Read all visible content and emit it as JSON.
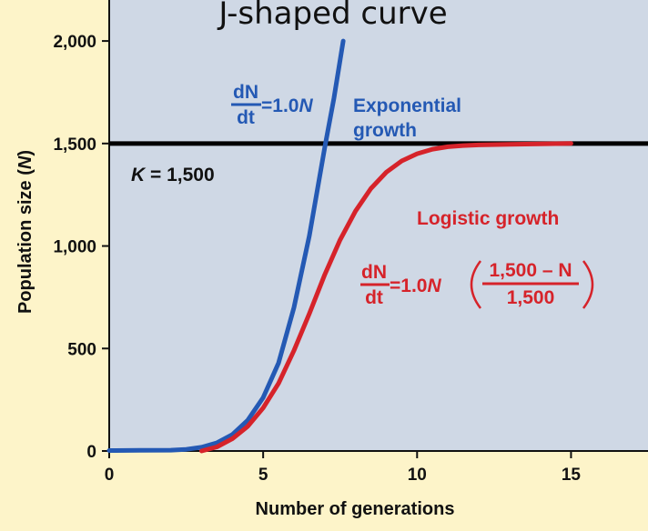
{
  "chart_data": {
    "type": "line",
    "title": "J-shaped curve",
    "xlabel": "Number of generations",
    "ylabel": "Population size",
    "ylabel_var": "N",
    "xlim": [
      0,
      17.5
    ],
    "ylim": [
      0,
      2200
    ],
    "x_ticks": [
      0,
      5,
      10,
      15
    ],
    "y_ticks": [
      0,
      500,
      1000,
      1500,
      2000
    ],
    "x_tick_labels": [
      "0",
      "5",
      "10",
      "15"
    ],
    "y_tick_labels": [
      "0",
      "500",
      "1,000",
      "1,500",
      "2,000"
    ],
    "grid": false,
    "background_color": "#cfd8e5",
    "page_color": "#fdf4c9",
    "carrying_capacity": {
      "value": 1500,
      "label_var": "K",
      "label_value": "= 1,500",
      "color": "#000000"
    },
    "series": [
      {
        "name": "Exponential growth",
        "name_line1": "Exponential",
        "name_line2": "growth",
        "color": "#2459b4",
        "x": [
          0,
          1,
          2,
          2.5,
          3,
          3.5,
          4,
          4.5,
          5,
          5.5,
          6,
          6.5,
          7,
          7.3,
          7.6
        ],
        "y": [
          2,
          3,
          4,
          8,
          18,
          40,
          80,
          150,
          260,
          430,
          700,
          1050,
          1480,
          1720,
          2000
        ]
      },
      {
        "name": "Logistic growth",
        "color": "#d6232a",
        "x": [
          3,
          3.5,
          4,
          4.5,
          5,
          5.5,
          6,
          6.5,
          7,
          7.5,
          8,
          8.5,
          9,
          9.5,
          10,
          10.5,
          11,
          11.5,
          12,
          13,
          14,
          15
        ],
        "y": [
          0,
          20,
          60,
          120,
          210,
          330,
          490,
          670,
          860,
          1030,
          1170,
          1280,
          1360,
          1415,
          1450,
          1472,
          1484,
          1490,
          1493,
          1496,
          1498,
          1500
        ]
      }
    ],
    "annotations": {
      "exp_eq_num": "dN",
      "exp_eq_den": "dt",
      "exp_eq_rhs": "=1.0",
      "exp_eq_var": "N",
      "log_eq_num": "dN",
      "log_eq_den": "dt",
      "log_eq_rhs": "=1.0",
      "log_eq_var": "N",
      "log_frac_num": "1,500 – N",
      "log_frac_den": "1,500"
    }
  }
}
